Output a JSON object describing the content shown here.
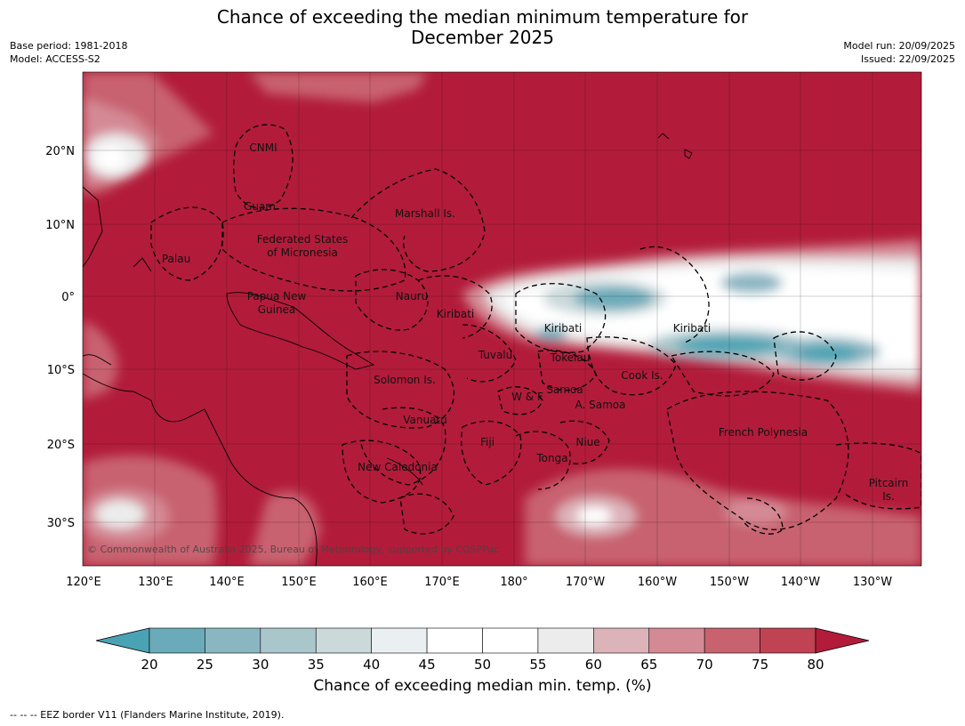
{
  "title_line1": "Chance of exceeding the median minimum temperature for",
  "title_line2": "December 2025",
  "base_period": "Base period: 1981-2018",
  "model": "Model: ACCESS-S2",
  "model_run": "Model run: 20/09/2025",
  "issued": "Issued: 22/09/2025",
  "copyright": "© Commonwealth of Australia 2025, Bureau of Meteorology, supported by COSPPac",
  "lon_ticks": [
    "120°E",
    "130°E",
    "140°E",
    "150°E",
    "160°E",
    "170°E",
    "180°",
    "170°W",
    "160°W",
    "150°W",
    "140°W",
    "130°W"
  ],
  "lat_ticks": [
    "20°N",
    "10°N",
    "0°",
    "10°S",
    "20°S",
    "30°S"
  ],
  "region_labels": [
    "CNMI",
    "Guam",
    "Marshall Is.",
    "Federated States",
    "of Micronesia",
    "Palau",
    "Nauru",
    "Papua New",
    "Guinea",
    "Kiribati",
    "Kiribati",
    "Kiribati",
    "Tuvalu",
    "Tokelau",
    "Cook Is.",
    "Solomon Is.",
    "Samoa",
    "W & F",
    "A. Samoa",
    "Vanuatu",
    "Fiji",
    "Niue",
    "Tonga",
    "French Polynesia",
    "New Caledonia",
    "Pitcairn",
    "Is."
  ],
  "colorbar": {
    "ticks": [
      "20",
      "25",
      "30",
      "35",
      "40",
      "45",
      "50",
      "55",
      "60",
      "65",
      "70",
      "75",
      "80"
    ],
    "colors": [
      "#4aa3b4",
      "#6aaab9",
      "#8ab6c2",
      "#a9c6cb",
      "#cbd9db",
      "#eaf0f1",
      "#ffffff",
      "#ffffff",
      "#ececec",
      "#dcb3b9",
      "#d48a95",
      "#c8626f",
      "#bf4352",
      "#b21c3a"
    ],
    "label": "Chance of exceeding median min. temp. (%)"
  },
  "footnote": "--  --  -- EEZ border V11 (Flanders Marine Institute, 2019)."
}
